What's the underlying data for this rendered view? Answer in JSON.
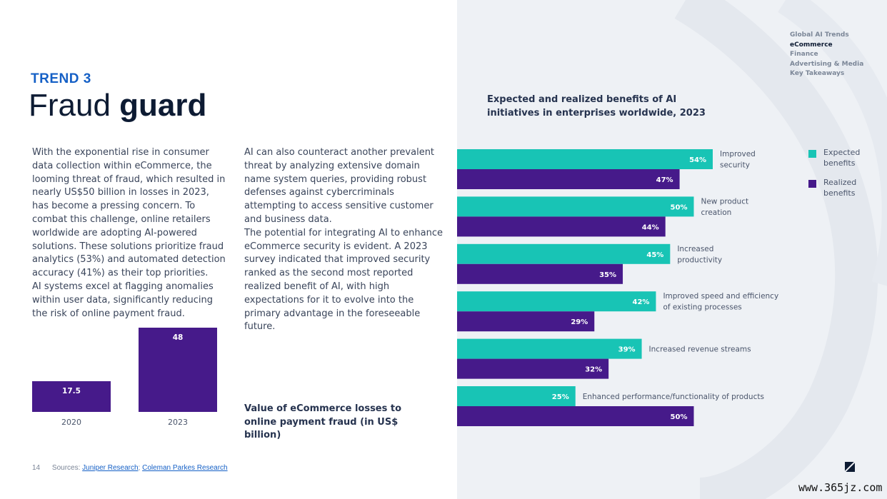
{
  "trend": {
    "label": "TREND 3",
    "title_light": "Fraud ",
    "title_bold": "guard"
  },
  "column1": {
    "paragraphs": [
      "With the exponential rise in consumer data collection within eCommerce, the looming threat of fraud, which resulted in nearly US$50 billion in losses in 2023, has become a pressing concern. To combat this challenge, online retailers worldwide are adopting AI-powered solutions. These solutions prioritize fraud analytics (53%) and automated detection accuracy (41%) as their top priorities.",
      "AI systems excel at flagging anomalies within user data, significantly reducing the risk of online payment fraud."
    ]
  },
  "column2": {
    "paragraphs": [
      "AI can also counteract another prevalent threat by analyzing extensive domain name system queries, providing robust defenses against cybercriminals attempting to access sensitive customer and business data.",
      "The potential for integrating AI to enhance eCommerce security is evident. A 2023 survey indicated that improved security ranked as the second most reported realized benefit of AI, with high expectations for it to evolve into the primary advantage in the foreseeable future."
    ]
  },
  "small_chart": {
    "caption": "Value of eCommerce losses to online payment fraud (in US$ billion)"
  },
  "nav": {
    "items": [
      "Global AI Trends",
      "eCommerce",
      "Finance",
      "Advertising & Media",
      "Key Takeaways"
    ],
    "active_index": 1
  },
  "hbar_chart": {
    "title": "Expected and realized benefits of AI initiatives in enterprises worldwide, 2023"
  },
  "legend": {
    "expected": "Expected benefits",
    "realized": "Realized benefits"
  },
  "colors": {
    "expected": "#18c4b5",
    "realized": "#461a8a",
    "accent": "#1560c6",
    "panel": "#eef1f5"
  },
  "footer": {
    "page_number": "14",
    "sources_label": "Sources: ",
    "source_1": "Juniper Research",
    "separator": "; ",
    "source_2": "Coleman Parkes Research"
  },
  "logo_icon": "brand-slash-icon",
  "watermark": "www.365jz.com",
  "chart_data": [
    {
      "type": "bar",
      "title": "Value of eCommerce losses to online payment fraud (in US$ billion)",
      "categories": [
        "2020",
        "2023"
      ],
      "values": [
        17.5,
        48
      ],
      "data_labels": [
        "17.5",
        "48"
      ],
      "color": "#461a8a"
    },
    {
      "type": "bar",
      "orientation": "horizontal",
      "title": "Expected and realized benefits of AI initiatives in enterprises worldwide, 2023",
      "categories": [
        "Improved security",
        "New product creation",
        "Increased productivity",
        "Improved speed and efficiency of existing processes",
        "Increased revenue streams",
        "Enhanced performance/functionality of products"
      ],
      "series": [
        {
          "name": "Expected benefits",
          "values": [
            54,
            50,
            45,
            42,
            39,
            25
          ],
          "labels": [
            "54%",
            "50%",
            "45%",
            "42%",
            "39%",
            "25%"
          ],
          "color": "#18c4b5"
        },
        {
          "name": "Realized benefits",
          "values": [
            47,
            44,
            35,
            29,
            32,
            50
          ],
          "labels": [
            "47%",
            "44%",
            "35%",
            "29%",
            "32%",
            "50%"
          ],
          "color": "#461a8a"
        }
      ],
      "legend_position": "right",
      "grid": false
    }
  ]
}
